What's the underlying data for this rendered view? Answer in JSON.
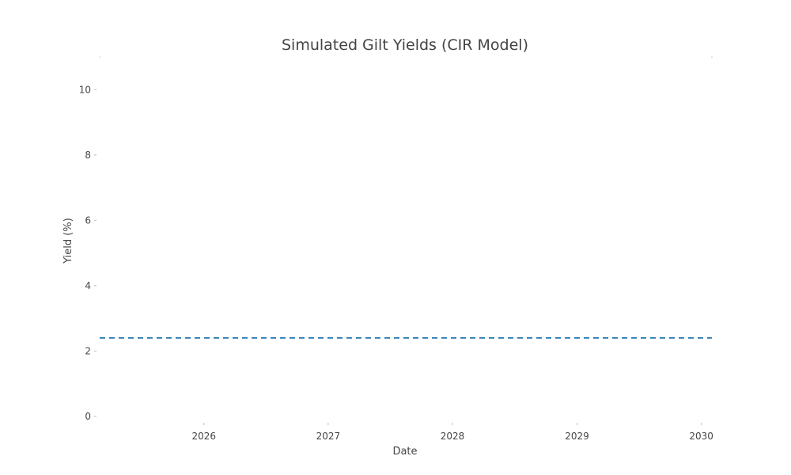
{
  "chart_data": {
    "type": "line",
    "title": "Simulated Gilt Yields (CIR Model)",
    "xlabel": "Date",
    "ylabel": "Yield (%)",
    "x_ticks": [
      "2026",
      "2027",
      "2028",
      "2029",
      "2030"
    ],
    "y_ticks": [
      "0",
      "2",
      "4",
      "6",
      "8",
      "10"
    ],
    "xlim": [
      "2025-03-01",
      "2030-02-01"
    ],
    "ylim": [
      0,
      11
    ],
    "grid": false,
    "legend": "none",
    "series": [
      {
        "style": "dashed",
        "color": "#1f77b4",
        "points": [
          {
            "x": "2025-03-01",
            "y": 2.4
          },
          {
            "x": "2030-02-01",
            "y": 2.4
          }
        ]
      }
    ]
  }
}
